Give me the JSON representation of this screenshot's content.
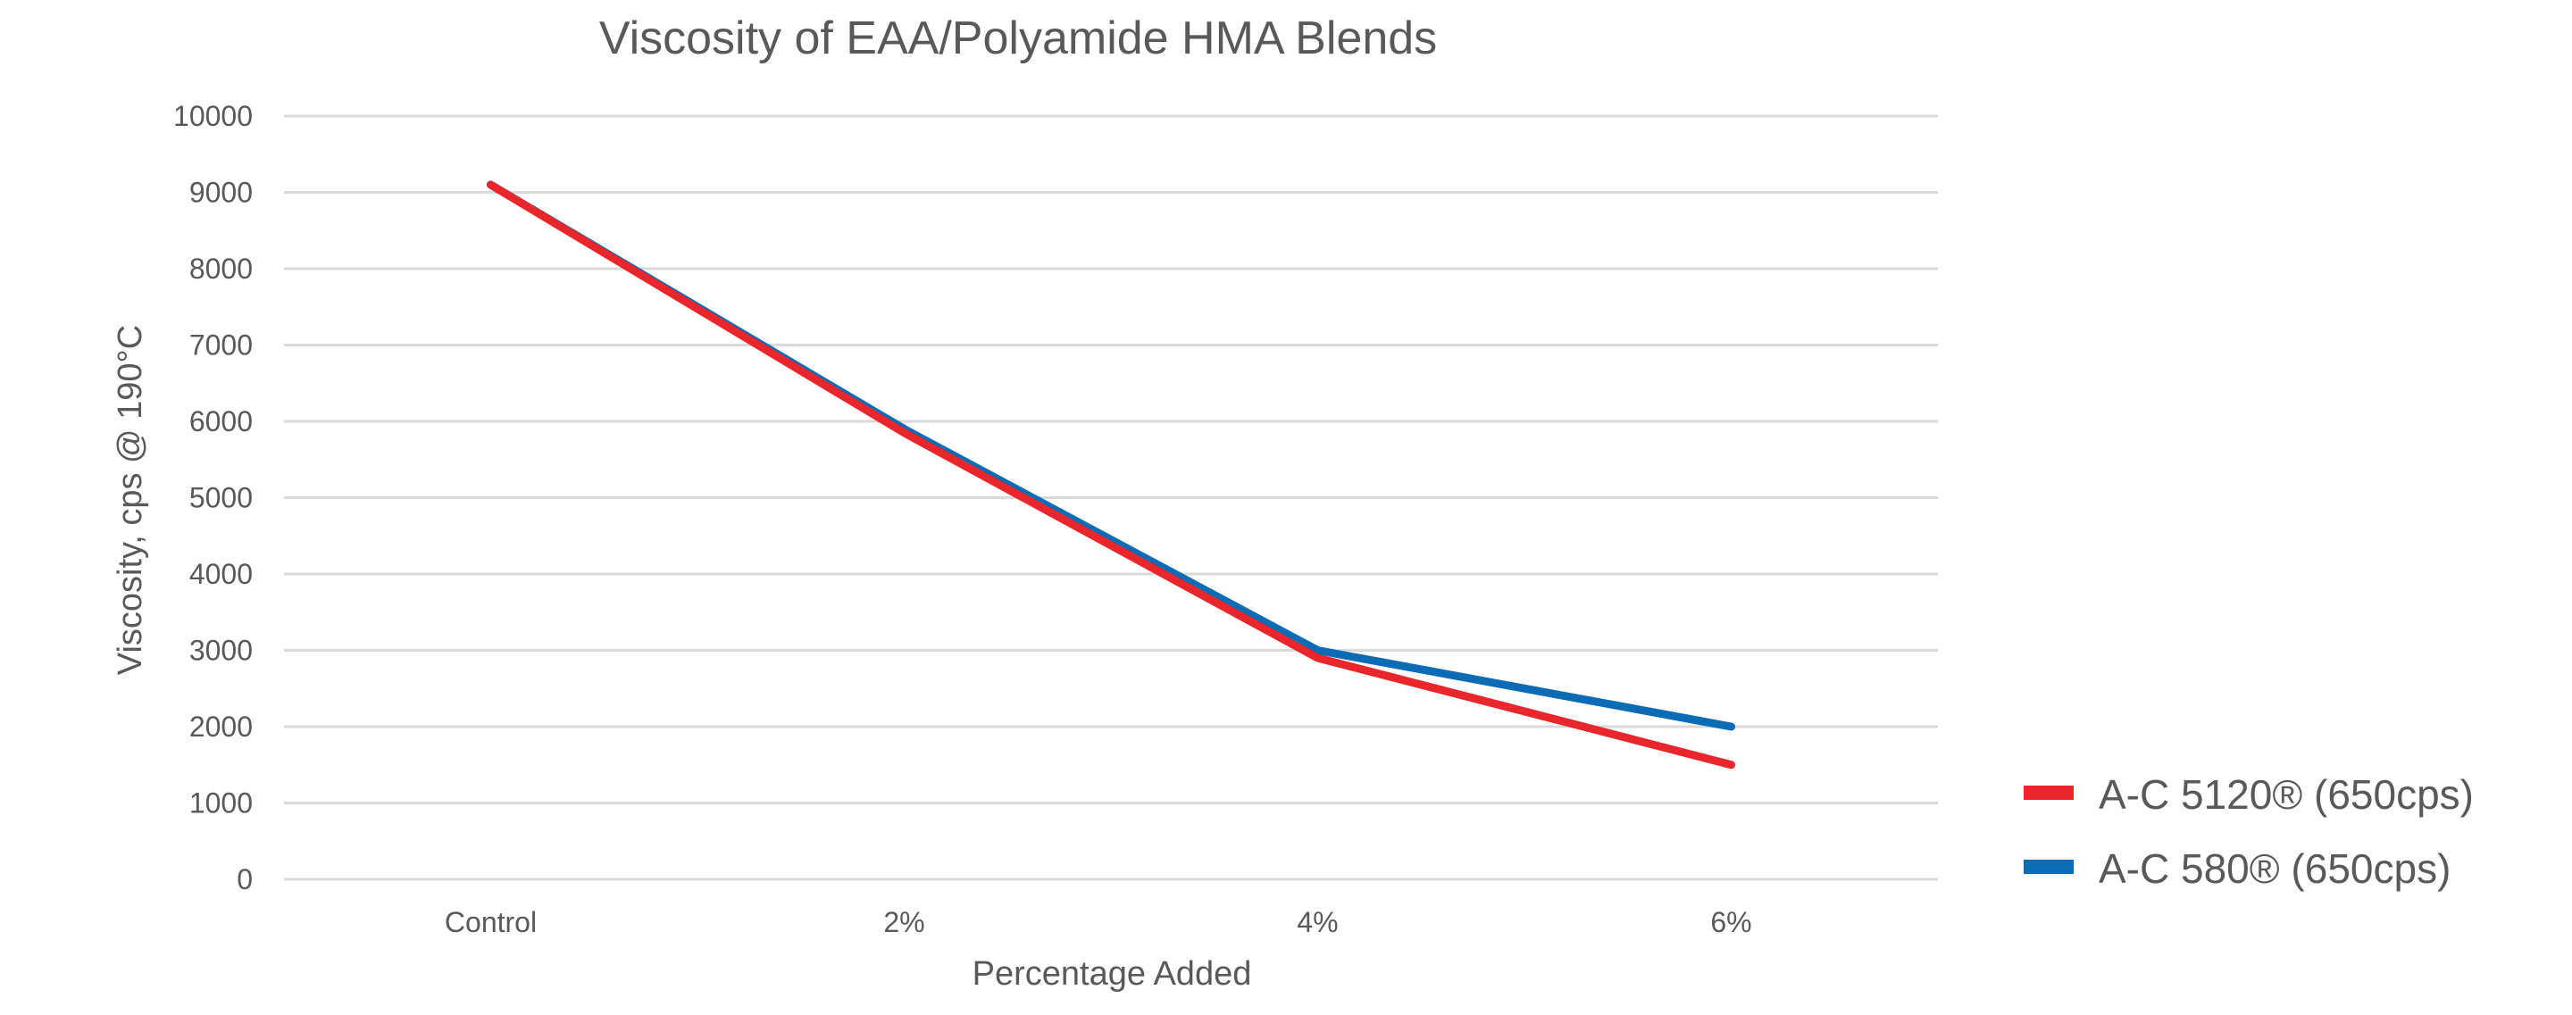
{
  "chart_data": {
    "type": "line",
    "title": "Viscosity of EAA/Polyamide HMA Blends",
    "xlabel": "Percentage Added",
    "ylabel": "Viscosity, cps @ 190°C",
    "categories": [
      "Control",
      "2%",
      "4%",
      "6%"
    ],
    "ylim": [
      0,
      10000
    ],
    "yticks": [
      0,
      1000,
      2000,
      3000,
      4000,
      5000,
      6000,
      7000,
      8000,
      9000,
      10000
    ],
    "grid": true,
    "legend_position": "right",
    "series": [
      {
        "name": "A-C 580® (650cps)",
        "color": "#0b6cb5",
        "values": [
          9100,
          5900,
          3000,
          2000
        ]
      },
      {
        "name": "A-C 5120® (650cps)",
        "color": "#e8262b",
        "values": [
          9100,
          5850,
          2900,
          1500
        ]
      }
    ],
    "legend_order": [
      "A-C 5120® (650cps)",
      "A-C 580® (650cps)"
    ]
  }
}
